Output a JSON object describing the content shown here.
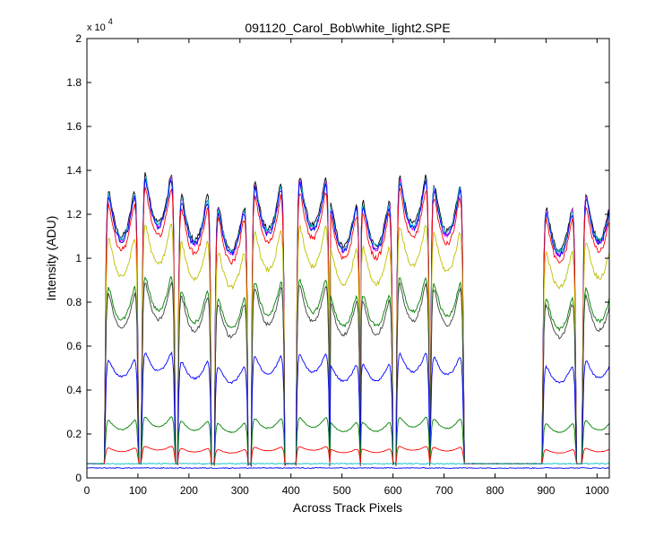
{
  "chart_data": {
    "type": "line",
    "title": "091120_Carol_Bob\\white_light2.SPE",
    "xlabel": "Across Track Pixels",
    "ylabel": "Intensity (ADU)",
    "xlim": [
      0,
      1024
    ],
    "ylim": [
      0,
      20000
    ],
    "y_multiplier_base": "x 10",
    "y_multiplier_exp": "4",
    "xticks": [
      0,
      100,
      200,
      300,
      400,
      500,
      600,
      700,
      800,
      900,
      1000
    ],
    "yticks": [
      0,
      2000,
      4000,
      6000,
      8000,
      10000,
      12000,
      14000,
      16000,
      18000,
      20000
    ],
    "ytick_labels": [
      "0",
      "0.2",
      "0.4",
      "0.6",
      "0.8",
      "1",
      "1.2",
      "1.4",
      "1.6",
      "1.8",
      "2"
    ],
    "grid": false,
    "legend": "none",
    "baseline": 650,
    "fiber_centers": [
      68,
      140,
      211,
      283,
      355,
      443,
      503,
      567,
      639,
      706,
      926,
      1004
    ],
    "fiber_half_width": 33,
    "gap": [
      740,
      890
    ],
    "series": [
      {
        "color": "#000000",
        "peak": 15000,
        "trough": 11000,
        "level": 1.0
      },
      {
        "color": "#ff00ff",
        "peak": 14900,
        "trough": 10800,
        "level": 0.98
      },
      {
        "color": "#00bfbf",
        "peak": 14800,
        "trough": 10900,
        "level": 0.99
      },
      {
        "color": "#0000ff",
        "peak": 14700,
        "trough": 10800,
        "level": 0.985
      },
      {
        "color": "#ff0000",
        "peak": 14400,
        "trough": 10400,
        "level": 0.95
      },
      {
        "color": "#bfbf00",
        "peak": 12500,
        "trough": 9200,
        "level": 0.83
      },
      {
        "color": "#007f00",
        "peak": 10000,
        "trough": 7200,
        "level": 0.66
      },
      {
        "color": "#404040",
        "peak": 9800,
        "trough": 6800,
        "level": 0.63
      },
      {
        "color": "#0000ff",
        "peak": 6100,
        "trough": 4600,
        "level": 0.38
      },
      {
        "color": "#007f00",
        "peak": 3000,
        "trough": 2200,
        "level": 0.17
      },
      {
        "color": "#ff0000",
        "peak": 1500,
        "trough": 1200,
        "level": 0.06
      },
      {
        "color": "#00bfbf",
        "flat": 650
      },
      {
        "color": "#0000ff",
        "flat": 450
      }
    ]
  }
}
